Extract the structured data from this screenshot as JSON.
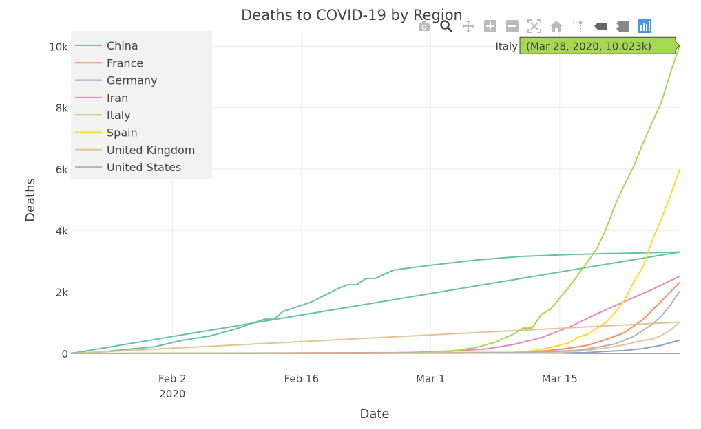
{
  "modebar": [
    {
      "name": "camera-icon"
    },
    {
      "name": "zoom-icon"
    },
    {
      "name": "pan-icon"
    },
    {
      "name": "zoom-in-icon"
    },
    {
      "name": "zoom-out-icon"
    },
    {
      "name": "autoscale-icon"
    },
    {
      "name": "home-icon"
    },
    {
      "name": "spike-lines-icon"
    },
    {
      "name": "hover-closest-icon"
    },
    {
      "name": "hover-compare-icon"
    },
    {
      "name": "plotly-logo-icon"
    }
  ],
  "hover": {
    "series": "Italy",
    "text": "(Mar 28, 2020, 10.023k)",
    "color": "#a6d854"
  },
  "chart_data": {
    "type": "line",
    "title": "Deaths to COVID-19 by Region",
    "xlabel": "Date",
    "ylabel": "Deaths",
    "xlim": [
      "2020-01-22",
      "2020-03-28"
    ],
    "ylim": [
      0,
      10500
    ],
    "x_ticks": [
      {
        "date": "2020-02-02",
        "label": "Feb 2",
        "sublabel": "2020"
      },
      {
        "date": "2020-02-16",
        "label": "Feb 16",
        "sublabel": ""
      },
      {
        "date": "2020-03-01",
        "label": "Mar 1",
        "sublabel": ""
      },
      {
        "date": "2020-03-15",
        "label": "Mar 15",
        "sublabel": ""
      }
    ],
    "y_ticks": [
      {
        "value": 0,
        "label": "0"
      },
      {
        "value": 2000,
        "label": "2k"
      },
      {
        "value": 4000,
        "label": "4k"
      },
      {
        "value": 6000,
        "label": "6k"
      },
      {
        "value": 8000,
        "label": "8k"
      },
      {
        "value": 10000,
        "label": "10k"
      }
    ],
    "grid": true,
    "legend_position": "top-left",
    "series": [
      {
        "name": "China",
        "color": "#66c2a5",
        "points": [
          [
            "2020-01-22",
            17
          ],
          [
            "2020-01-25",
            41
          ],
          [
            "2020-01-28",
            132
          ],
          [
            "2020-01-31",
            213
          ],
          [
            "2020-02-03",
            425
          ],
          [
            "2020-02-06",
            563
          ],
          [
            "2020-02-09",
            811
          ],
          [
            "2020-02-11",
            1016
          ],
          [
            "2020-02-12",
            1113
          ],
          [
            "2020-02-13",
            1113
          ],
          [
            "2020-02-14",
            1367
          ],
          [
            "2020-02-17",
            1665
          ],
          [
            "2020-02-20",
            2118
          ],
          [
            "2020-02-21",
            2236
          ],
          [
            "2020-02-22",
            2236
          ],
          [
            "2020-02-23",
            2441
          ],
          [
            "2020-02-24",
            2443
          ],
          [
            "2020-02-26",
            2715
          ],
          [
            "2020-03-01",
            2870
          ],
          [
            "2020-03-06",
            3042
          ],
          [
            "2020-03-11",
            3162
          ],
          [
            "2020-03-16",
            3218
          ],
          [
            "2020-03-21",
            3255
          ],
          [
            "2020-03-28",
            3299
          ]
        ]
      },
      {
        "name": "China",
        "color": "#66c2a5",
        "points": [
          [
            "2020-01-22",
            0
          ],
          [
            "2020-03-28",
            3299
          ]
        ]
      },
      {
        "name": "France",
        "color": "#fc8d62",
        "points": [
          [
            "2020-01-22",
            0
          ],
          [
            "2020-03-10",
            33
          ],
          [
            "2020-03-13",
            79
          ],
          [
            "2020-03-15",
            127
          ],
          [
            "2020-03-18",
            264
          ],
          [
            "2020-03-20",
            450
          ],
          [
            "2020-03-22",
            674
          ],
          [
            "2020-03-24",
            1100
          ],
          [
            "2020-03-26",
            1698
          ],
          [
            "2020-03-28",
            2314
          ]
        ]
      },
      {
        "name": "Germany",
        "color": "#8da0cb",
        "points": [
          [
            "2020-01-22",
            0
          ],
          [
            "2020-03-15",
            12
          ],
          [
            "2020-03-18",
            28
          ],
          [
            "2020-03-20",
            67
          ],
          [
            "2020-03-22",
            94
          ],
          [
            "2020-03-24",
            157
          ],
          [
            "2020-03-26",
            267
          ],
          [
            "2020-03-28",
            433
          ]
        ]
      },
      {
        "name": "Iran",
        "color": "#e78ac3",
        "points": [
          [
            "2020-01-22",
            0
          ],
          [
            "2020-02-19",
            2
          ],
          [
            "2020-02-24",
            12
          ],
          [
            "2020-02-28",
            34
          ],
          [
            "2020-03-01",
            54
          ],
          [
            "2020-03-04",
            92
          ],
          [
            "2020-03-07",
            145
          ],
          [
            "2020-03-10",
            291
          ],
          [
            "2020-03-13",
            514
          ],
          [
            "2020-03-16",
            853
          ],
          [
            "2020-03-19",
            1284
          ],
          [
            "2020-03-22",
            1685
          ],
          [
            "2020-03-25",
            2077
          ],
          [
            "2020-03-28",
            2517
          ]
        ]
      },
      {
        "name": "Italy",
        "color": "#a6d854",
        "points": [
          [
            "2020-01-22",
            0
          ],
          [
            "2020-02-22",
            2
          ],
          [
            "2020-02-25",
            10
          ],
          [
            "2020-02-28",
            21
          ],
          [
            "2020-03-01",
            34
          ],
          [
            "2020-03-04",
            107
          ],
          [
            "2020-03-06",
            197
          ],
          [
            "2020-03-08",
            366
          ],
          [
            "2020-03-10",
            631
          ],
          [
            "2020-03-11",
            827
          ],
          [
            "2020-03-12",
            827
          ],
          [
            "2020-03-13",
            1266
          ],
          [
            "2020-03-14",
            1441
          ],
          [
            "2020-03-16",
            2158
          ],
          [
            "2020-03-18",
            2978
          ],
          [
            "2020-03-19",
            3405
          ],
          [
            "2020-03-20",
            4032
          ],
          [
            "2020-03-21",
            4825
          ],
          [
            "2020-03-22",
            5476
          ],
          [
            "2020-03-23",
            6077
          ],
          [
            "2020-03-24",
            6820
          ],
          [
            "2020-03-25",
            7503
          ],
          [
            "2020-03-26",
            8165
          ],
          [
            "2020-03-27",
            9134
          ],
          [
            "2020-03-28",
            10023
          ]
        ]
      },
      {
        "name": "Spain",
        "color": "#ffd92f",
        "points": [
          [
            "2020-01-22",
            0
          ],
          [
            "2020-03-08",
            17
          ],
          [
            "2020-03-10",
            35
          ],
          [
            "2020-03-12",
            84
          ],
          [
            "2020-03-14",
            195
          ],
          [
            "2020-03-16",
            342
          ],
          [
            "2020-03-17",
            533
          ],
          [
            "2020-03-18",
            623
          ],
          [
            "2020-03-20",
            1002
          ],
          [
            "2020-03-21",
            1326
          ],
          [
            "2020-03-22",
            1720
          ],
          [
            "2020-03-23",
            2311
          ],
          [
            "2020-03-24",
            2808
          ],
          [
            "2020-03-25",
            3647
          ],
          [
            "2020-03-26",
            4365
          ],
          [
            "2020-03-27",
            5138
          ],
          [
            "2020-03-28",
            5982
          ]
        ]
      },
      {
        "name": "United Kingdom",
        "color": "#e5c494",
        "points": [
          [
            "2020-01-22",
            0
          ],
          [
            "2020-03-14",
            21
          ],
          [
            "2020-03-16",
            56
          ],
          [
            "2020-03-18",
            104
          ],
          [
            "2020-03-20",
            177
          ],
          [
            "2020-03-22",
            282
          ],
          [
            "2020-03-24",
            422
          ],
          [
            "2020-03-25",
            465
          ],
          [
            "2020-03-26",
            578
          ],
          [
            "2020-03-27",
            759
          ],
          [
            "2020-03-28",
            1019
          ]
        ]
      },
      {
        "name": "United Kingdom",
        "color": "#e5c494",
        "points": [
          [
            "2020-01-22",
            0
          ],
          [
            "2020-03-28",
            1019
          ]
        ]
      },
      {
        "name": "United States",
        "color": "#b3b3b3",
        "points": [
          [
            "2020-01-22",
            0
          ],
          [
            "2020-03-04",
            11
          ],
          [
            "2020-03-10",
            28
          ],
          [
            "2020-03-14",
            57
          ],
          [
            "2020-03-17",
            108
          ],
          [
            "2020-03-19",
            200
          ],
          [
            "2020-03-21",
            309
          ],
          [
            "2020-03-23",
            550
          ],
          [
            "2020-03-25",
            943
          ],
          [
            "2020-03-26",
            1209
          ],
          [
            "2020-03-27",
            1581
          ],
          [
            "2020-03-28",
            2026
          ]
        ]
      }
    ],
    "legend": [
      {
        "name": "China",
        "color": "#66c2a5"
      },
      {
        "name": "France",
        "color": "#fc8d62"
      },
      {
        "name": "Germany",
        "color": "#8da0cb"
      },
      {
        "name": "Iran",
        "color": "#e78ac3"
      },
      {
        "name": "Italy",
        "color": "#a6d854"
      },
      {
        "name": "Spain",
        "color": "#ffd92f"
      },
      {
        "name": "United Kingdom",
        "color": "#e5c494"
      },
      {
        "name": "United States",
        "color": "#b3b3b3"
      }
    ]
  }
}
